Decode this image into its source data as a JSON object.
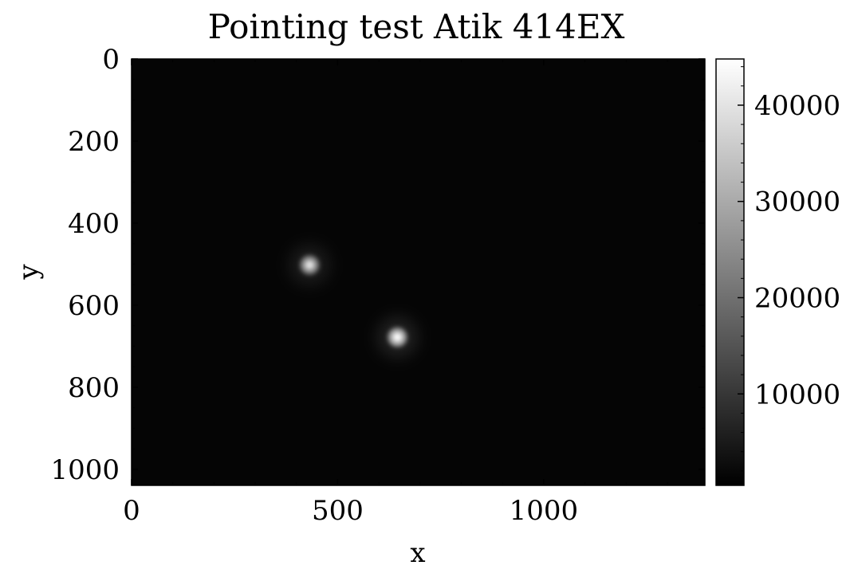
{
  "chart_data": {
    "type": "heatmap",
    "title": "Pointing test Atik 414EX",
    "xlabel": "x",
    "ylabel": "y",
    "xlim": [
      0,
      1391
    ],
    "ylim": [
      1039,
      0
    ],
    "xticks": [
      0,
      500,
      1000
    ],
    "yticks": [
      0,
      200,
      400,
      600,
      800,
      1000
    ],
    "colormap": "gray",
    "background_color": "#050505",
    "colorbar": {
      "range": [
        500,
        44800
      ],
      "ticks": [
        10000,
        20000,
        30000,
        40000
      ],
      "tick_labels": [
        "10000",
        "20000",
        "30000",
        "40000"
      ]
    },
    "sources": [
      {
        "x": 432,
        "y": 502,
        "peak": 36000
      },
      {
        "x": 645,
        "y": 678,
        "peak": 44800
      }
    ],
    "grid": false
  }
}
